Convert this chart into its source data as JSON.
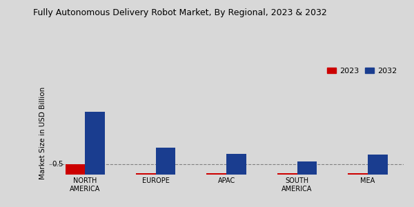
{
  "title": "Fully Autonomous Delivery Robot Market, By Regional, 2023 & 2032",
  "categories": [
    "NORTH\nAMERICA",
    "EUROPE",
    "APAC",
    "SOUTH\nAMERICA",
    "MEA"
  ],
  "values_2023": [
    0.5,
    0.07,
    0.04,
    0.04,
    0.04
  ],
  "values_2032": [
    3.2,
    1.35,
    1.05,
    0.65,
    1.0
  ],
  "color_2023": "#cc0000",
  "color_2032": "#1a3d8f",
  "ylabel": "Market Size in USD Billion",
  "background_color": "#d8d8d8",
  "hline_y": 0.5,
  "hline_label": "0.5",
  "legend_2023": "2023",
  "legend_2032": "2032",
  "ylim": [
    0,
    4.2
  ],
  "bar_width": 0.28
}
